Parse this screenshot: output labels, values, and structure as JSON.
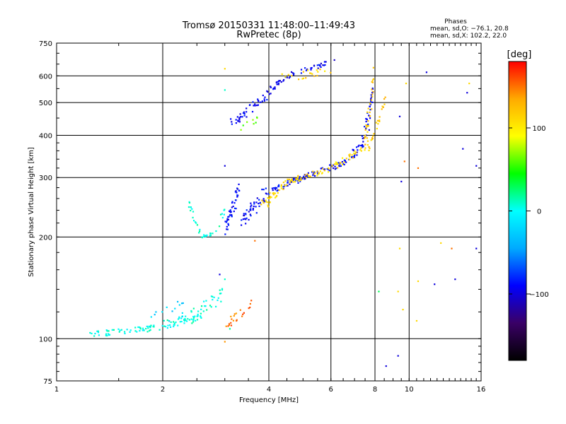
{
  "chart_data": {
    "type": "scatter",
    "title": "Tromsø 20150331 11:48:00–11:49:43",
    "subtitle": "RwPretec (8p)",
    "xlabel": "Frequency [MHz]",
    "ylabel": "Stationary phase Virtual Height [km]",
    "x_scale": "log",
    "y_scale": "log",
    "xlim": [
      1,
      16
    ],
    "ylim": [
      75,
      750
    ],
    "grid": true,
    "x_ticks": [
      {
        "value": 1,
        "label": "1"
      },
      {
        "value": 2,
        "label": "2"
      },
      {
        "value": 4,
        "label": "4"
      },
      {
        "value": 6,
        "label": "6"
      },
      {
        "value": 8,
        "label": "8"
      },
      {
        "value": 10,
        "label": "10"
      },
      {
        "value": 16,
        "label": "16"
      }
    ],
    "y_ticks": [
      {
        "value": 75,
        "label": "75"
      },
      {
        "value": 100,
        "label": "100"
      },
      {
        "value": 200,
        "label": "200"
      },
      {
        "value": 300,
        "label": "300"
      },
      {
        "value": 400,
        "label": "400"
      },
      {
        "value": 500,
        "label": "500"
      },
      {
        "value": 600,
        "label": "600"
      },
      {
        "value": 750,
        "label": "750"
      }
    ],
    "info": {
      "title": "Phases",
      "line1": "mean, sd,O: −76.1, 20.8",
      "line2": "mean, sd,X: 102.2, 22.0"
    },
    "colorbar": {
      "label": "[deg]",
      "range": [
        -180,
        180
      ],
      "ticks": [
        {
          "value": 100,
          "label": "100"
        },
        {
          "value": 0,
          "label": "0"
        },
        {
          "value": -100,
          "label": "−100"
        }
      ],
      "colors": [
        "#000000",
        "#3a0066",
        "#0000ff",
        "#00aaff",
        "#00ffff",
        "#00ff00",
        "#ffff00",
        "#ffaa00",
        "#ff0000"
      ]
    },
    "series": [
      {
        "segments": [
          {
            "x0": 1.25,
            "x1": 1.8,
            "y0": 103,
            "y1": 107,
            "n": 45,
            "phase": 5,
            "spread": 0.02
          },
          {
            "x0": 1.8,
            "x1": 2.4,
            "y0": 107,
            "y1": 115,
            "n": 45,
            "phase": 5,
            "spread": 0.03
          },
          {
            "x0": 2.4,
            "x1": 2.95,
            "y0": 115,
            "y1": 135,
            "n": 45,
            "phase": 5,
            "spread": 0.05
          },
          {
            "x0": 1.8,
            "x1": 2.3,
            "y0": 110,
            "y1": 125,
            "n": 15,
            "phase": -25,
            "spread": 0.06
          }
        ]
      },
      {
        "segments": [
          {
            "x0": 2.35,
            "x1": 2.55,
            "y0": 260,
            "y1": 205,
            "n": 16,
            "phase": 8,
            "spread": 0.02
          },
          {
            "x0": 2.55,
            "x1": 2.8,
            "y0": 200,
            "y1": 205,
            "n": 14,
            "phase": 8,
            "spread": 0.01
          },
          {
            "x0": 2.8,
            "x1": 3.0,
            "y0": 210,
            "y1": 240,
            "n": 8,
            "phase": 8,
            "spread": 0.03
          }
        ]
      },
      {
        "segments": [
          {
            "x0": 3.0,
            "x1": 3.3,
            "y0": 205,
            "y1": 290,
            "n": 45,
            "phase": -92,
            "spread": 0.06
          },
          {
            "x0": 3.3,
            "x1": 3.9,
            "y0": 215,
            "y1": 270,
            "n": 45,
            "phase": -92,
            "spread": 0.05
          },
          {
            "x0": 3.9,
            "x1": 5.0,
            "y0": 270,
            "y1": 300,
            "n": 45,
            "phase": -92,
            "spread": 0.02
          },
          {
            "x0": 5.0,
            "x1": 6.5,
            "y0": 300,
            "y1": 330,
            "n": 45,
            "phase": -92,
            "spread": 0.02
          },
          {
            "x0": 6.5,
            "x1": 7.4,
            "y0": 330,
            "y1": 380,
            "n": 30,
            "phase": -92,
            "spread": 0.03
          },
          {
            "x0": 7.4,
            "x1": 7.9,
            "y0": 380,
            "y1": 540,
            "n": 35,
            "phase": -92,
            "spread": 0.04
          }
        ]
      },
      {
        "segments": [
          {
            "x0": 3.8,
            "x1": 4.5,
            "y0": 245,
            "y1": 290,
            "n": 35,
            "phase": 108,
            "spread": 0.04
          },
          {
            "x0": 4.5,
            "x1": 6.0,
            "y0": 290,
            "y1": 320,
            "n": 40,
            "phase": 110,
            "spread": 0.02
          },
          {
            "x0": 6.0,
            "x1": 7.5,
            "y0": 320,
            "y1": 370,
            "n": 30,
            "phase": 110,
            "spread": 0.02
          },
          {
            "x0": 7.5,
            "x1": 7.95,
            "y0": 370,
            "y1": 620,
            "n": 30,
            "phase": 120,
            "spread": 0.04
          },
          {
            "x0": 7.6,
            "x1": 8.6,
            "y0": 360,
            "y1": 510,
            "n": 25,
            "phase": 118,
            "spread": 0.03
          }
        ]
      },
      {
        "segments": [
          {
            "x0": 3.1,
            "x1": 3.8,
            "y0": 430,
            "y1": 510,
            "n": 35,
            "phase": -92,
            "spread": 0.03
          },
          {
            "x0": 3.8,
            "x1": 4.5,
            "y0": 510,
            "y1": 600,
            "n": 30,
            "phase": -92,
            "spread": 0.03
          },
          {
            "x0": 4.5,
            "x1": 6.1,
            "y0": 600,
            "y1": 660,
            "n": 30,
            "phase": -92,
            "spread": 0.02
          },
          {
            "x0": 4.3,
            "x1": 6.0,
            "y0": 590,
            "y1": 620,
            "n": 20,
            "phase": 110,
            "spread": 0.03
          },
          {
            "x0": 3.3,
            "x1": 3.7,
            "y0": 420,
            "y1": 450,
            "n": 8,
            "phase": 60,
            "spread": 0.03
          }
        ]
      },
      {
        "segments": [
          {
            "x0": 3.05,
            "x1": 3.6,
            "y0": 110,
            "y1": 128,
            "n": 22,
            "phase": 150,
            "spread": 0.03
          }
        ]
      },
      {
        "points": [
          {
            "x": 3.0,
            "y": 630,
            "phase": 110
          },
          {
            "x": 3.0,
            "y": 545,
            "phase": 10
          },
          {
            "x": 3.0,
            "y": 325,
            "phase": -100
          },
          {
            "x": 3.0,
            "y": 150,
            "phase": 10
          },
          {
            "x": 3.0,
            "y": 98,
            "phase": 140
          },
          {
            "x": 3.1,
            "y": 107,
            "phase": 20
          },
          {
            "x": 3.65,
            "y": 195,
            "phase": 150
          },
          {
            "x": 9.4,
            "y": 455,
            "phase": -100
          },
          {
            "x": 9.4,
            "y": 185,
            "phase": 110
          },
          {
            "x": 9.3,
            "y": 89,
            "phase": -100
          },
          {
            "x": 8.6,
            "y": 83,
            "phase": -100
          },
          {
            "x": 8.2,
            "y": 138,
            "phase": 30
          },
          {
            "x": 9.3,
            "y": 138,
            "phase": 110
          },
          {
            "x": 9.6,
            "y": 122,
            "phase": 110
          },
          {
            "x": 9.7,
            "y": 335,
            "phase": 150
          },
          {
            "x": 9.8,
            "y": 570,
            "phase": 110
          },
          {
            "x": 9.5,
            "y": 292,
            "phase": -100
          },
          {
            "x": 11.2,
            "y": 615,
            "phase": -100
          },
          {
            "x": 10.6,
            "y": 320,
            "phase": 150
          },
          {
            "x": 10.6,
            "y": 148,
            "phase": 110
          },
          {
            "x": 10.5,
            "y": 113,
            "phase": 110
          },
          {
            "x": 11.8,
            "y": 145,
            "phase": -100
          },
          {
            "x": 12.3,
            "y": 192,
            "phase": 110
          },
          {
            "x": 13.2,
            "y": 185,
            "phase": 150
          },
          {
            "x": 14.2,
            "y": 365,
            "phase": -100
          },
          {
            "x": 14.6,
            "y": 535,
            "phase": -100
          },
          {
            "x": 15.5,
            "y": 325,
            "phase": -100
          },
          {
            "x": 15.5,
            "y": 185,
            "phase": -100
          },
          {
            "x": 14.8,
            "y": 570,
            "phase": 110
          },
          {
            "x": 13.5,
            "y": 150,
            "phase": -100
          },
          {
            "x": 2.9,
            "y": 155,
            "phase": -100
          },
          {
            "x": 7.7,
            "y": 415,
            "phase": -100
          }
        ]
      }
    ]
  }
}
